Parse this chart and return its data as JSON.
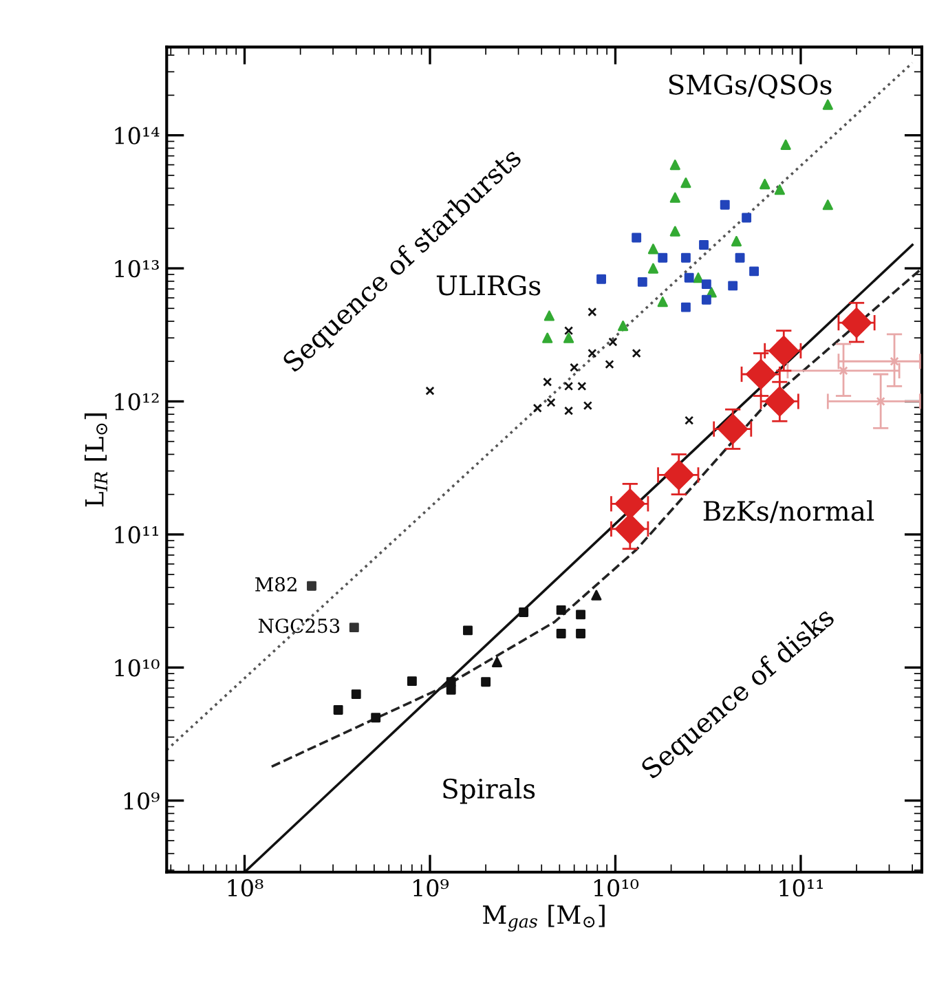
{
  "chart_data": {
    "type": "scatter",
    "log": "xy",
    "xlabel": "M$_{gas}$ [M$_{⊙}$]",
    "ylabel": "L$_{IR}$ [L$_{⊙}$]",
    "xlim": [
      38000000.0,
      450000000000.0
    ],
    "ylim": [
      290000000.0,
      460000000000000.0
    ],
    "xticks": [
      {
        "value": 100000000.0,
        "label": "10⁸"
      },
      {
        "value": 1000000000.0,
        "label": "10⁹"
      },
      {
        "value": 10000000000.0,
        "label": "10¹⁰"
      },
      {
        "value": 100000000000.0,
        "label": "10¹¹"
      }
    ],
    "yticks": [
      {
        "value": 1000000000.0,
        "label": "10⁹"
      },
      {
        "value": 10000000000.0,
        "label": "10¹⁰"
      },
      {
        "value": 100000000000.0,
        "label": "10¹¹"
      },
      {
        "value": 1000000000000.0,
        "label": "10¹²"
      },
      {
        "value": 10000000000000.0,
        "label": "10¹³"
      },
      {
        "value": 100000000000000.0,
        "label": "10¹⁴"
      }
    ],
    "grid": false,
    "annotations": [
      "SMGs/QSOs",
      "Sequence of starbursts",
      "ULIRGs",
      "BzKs/normal",
      "Spirals",
      "Sequence of disks",
      {
        "text": "M82",
        "x": 230000000.0,
        "y": 41000000000.0
      },
      {
        "text": "NGC253",
        "x": 390000000.0,
        "y": 20000000000.0
      }
    ],
    "series": [
      {
        "type": "line",
        "color": "#555555",
        "line_style": "dotted",
        "marker": "none",
        "x": [
          38000000.0,
          400000000000.0
        ],
        "values": [
          2400000000.0,
          350000000000000.0
        ]
      },
      {
        "type": "line",
        "color": "#111111",
        "line_style": "solid",
        "marker": "none",
        "x": [
          100000000.0,
          400000000000.0
        ],
        "values": [
          290000000.0,
          15000000000000.0
        ]
      },
      {
        "type": "line",
        "color": "#222222",
        "line_style": "dashed",
        "marker": "none",
        "x": [
          140000000.0,
          1200000000.0,
          4700000000.0,
          13000000000.0,
          69000000000.0,
          450000000000.0
        ],
        "values": [
          1800000000.0,
          7200000000.0,
          22000000000.0,
          77000000000.0,
          1050000000000.0,
          10000000000000.0
        ]
      },
      {
        "color": "#111111",
        "marker": "square",
        "x": [
          320000000.0,
          400000000.0,
          510000000.0,
          800000000.0,
          1300000000.0,
          1300000000.0,
          1600000000.0,
          2000000000.0,
          3200000000.0,
          5100000000.0,
          6500000000.0,
          5100000000.0,
          6500000000.0
        ],
        "values": [
          4800000000.0,
          6300000000.0,
          4200000000.0,
          7900000000.0,
          7800000000.0,
          6800000000.0,
          19000000000.0,
          7800000000.0,
          26000000000.0,
          27000000000.0,
          25000000000.0,
          18000000000.0,
          18000000000.0
        ]
      },
      {
        "color": "#111111",
        "marker": "triangle",
        "x": [
          2300000000.0,
          7900000000.0
        ],
        "values": [
          11000000000.0,
          35000000000.0
        ]
      },
      {
        "color": "#333333",
        "marker": "square",
        "x": [
          230000000.0,
          390000000.0
        ],
        "values": [
          41000000000.0,
          20000000000.0
        ]
      },
      {
        "color": "#111111",
        "marker": "cross",
        "x": [
          1000000000.0,
          7500000000.0,
          5600000000.0,
          9700000000.0,
          13000000000.0,
          7500000000.0,
          6000000000.0,
          9300000000.0,
          4300000000.0,
          5600000000.0,
          6600000000.0,
          3800000000.0,
          4500000000.0,
          5600000000.0,
          7100000000.0,
          25000000000.0
        ],
        "values": [
          1200000000000.0,
          4700000000000.0,
          3400000000000.0,
          2800000000000.0,
          2300000000000.0,
          2300000000000.0,
          1800000000000.0,
          1900000000000.0,
          1400000000000.0,
          1300000000000.0,
          1300000000000.0,
          890000000000.0,
          980000000000.0,
          850000000000.0,
          930000000000.0,
          720000000000.0
        ]
      },
      {
        "color": "#33aa33",
        "marker": "triangle",
        "x": [
          83000000000.0,
          21000000000.0,
          24000000000.0,
          21000000000.0,
          64000000000.0,
          77000000000.0,
          140000000000.0,
          21000000000.0,
          16000000000.0,
          45000000000.0,
          16000000000.0,
          28000000000.0,
          18000000000.0,
          11000000000.0,
          4400000000.0,
          4300000000.0,
          5600000000.0,
          33000000000.0,
          140000000000.0
        ],
        "values": [
          85000000000000.0,
          60000000000000.0,
          44000000000000.0,
          34000000000000.0,
          43000000000000.0,
          39000000000000.0,
          30000000000000.0,
          19000000000000.0,
          14000000000000.0,
          16000000000000.0,
          10000000000000.0,
          8500000000000.0,
          5600000000000.0,
          3700000000000.0,
          4400000000000.0,
          3000000000000.0,
          3000000000000.0,
          6600000000000.0,
          170000000000000.0
        ]
      },
      {
        "color": "#2244bb",
        "marker": "square",
        "x": [
          39000000000.0,
          51000000000.0,
          13000000000.0,
          30000000000.0,
          47000000000.0,
          18000000000.0,
          24000000000.0,
          56000000000.0,
          8400000000.0,
          43000000000.0,
          31000000000.0,
          31000000000.0,
          24000000000.0,
          14000000000.0,
          25000000000.0
        ],
        "values": [
          30000000000000.0,
          24000000000000.0,
          17000000000000.0,
          15000000000000.0,
          12000000000000.0,
          12000000000000.0,
          12000000000000.0,
          9500000000000.0,
          8300000000000.0,
          7400000000000.0,
          7600000000000.0,
          5800000000000.0,
          5100000000000.0,
          7900000000000.0,
          8500000000000.0
        ]
      },
      {
        "color": "#e8a8a8",
        "marker": "cross",
        "x": [
          170000000000.0,
          320000000000.0,
          270000000000.0
        ],
        "values": [
          1700000000000.0,
          2000000000000.0,
          1000000000000.0
        ],
        "errors": [
          [
            1100000000000.0,
            2700000000000.0
          ],
          [
            1300000000000.0,
            3200000000000.0
          ],
          [
            630000000000.0,
            1600000000000.0
          ]
        ],
        "xerrors": [
          [
            85000000000.0,
            340000000000.0
          ],
          [
            160000000000.0,
            440000000000.0
          ],
          [
            140000000000.0,
            440000000000.0
          ]
        ]
      },
      {
        "color": "#dd2222",
        "marker": "diamond",
        "x": [
          200000000000.0,
          81000000000.0,
          61000000000.0,
          77000000000.0,
          43000000000.0,
          22000000000.0,
          12000000000.0,
          12000000000.0
        ],
        "values": [
          3900000000000.0,
          2400000000000.0,
          1600000000000.0,
          1000000000000.0,
          620000000000.0,
          280000000000.0,
          170000000000.0,
          110000000000.0
        ],
        "errors": [
          [
            2800000000000.0,
            5500000000000.0
          ],
          [
            1700000000000.0,
            3400000000000.0
          ],
          [
            1100000000000.0,
            2300000000000.0
          ],
          [
            710000000000.0,
            1400000000000.0
          ],
          [
            440000000000.0,
            870000000000.0
          ],
          [
            200000000000.0,
            400000000000.0
          ],
          [
            170000000000.0,
            240000000000.0
          ],
          [
            78000000000.0,
            110000000000.0
          ]
        ],
        "xerrors": [
          [
            160000000000.0,
            250000000000.0
          ],
          [
            64000000000.0,
            100000000000.0
          ],
          [
            48000000000.0,
            77000000000.0
          ],
          [
            61000000000.0,
            97000000000.0
          ],
          [
            34000000000.0,
            54000000000.0
          ],
          [
            17000000000.0,
            28000000000.0
          ],
          [
            9500000000.0,
            15000000000.0
          ],
          [
            9500000000.0,
            15000000000.0
          ]
        ]
      }
    ]
  }
}
